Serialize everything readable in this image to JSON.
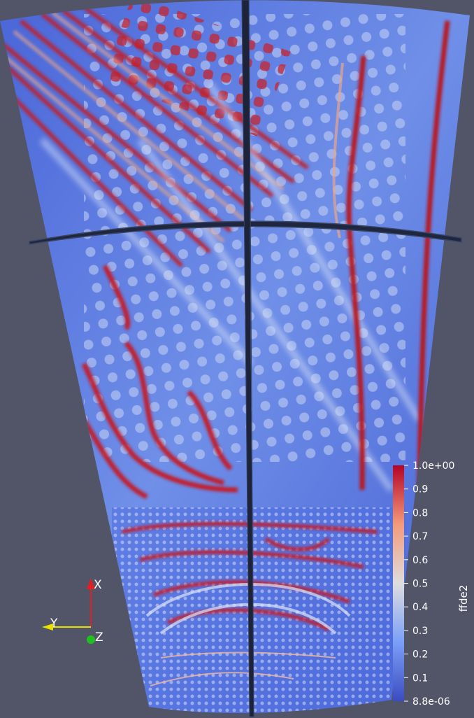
{
  "colormap": {
    "name": "Cool to Warm",
    "colors": {
      "low": "#3b4cc0",
      "mid": "#dddddd",
      "high": "#b40426"
    }
  },
  "background_color": "#525468",
  "scalar_bar": {
    "title": "ffde2",
    "range": [
      8.8e-06,
      1.0
    ],
    "tick_labels": [
      "1.0e+00",
      "0.9",
      "0.8",
      "0.7",
      "0.6",
      "0.5",
      "0.4",
      "0.3",
      "0.2",
      "0.1",
      "8.8e-06"
    ]
  },
  "orientation_axes": {
    "x_label": "X",
    "y_label": "Y",
    "z_label": "Z",
    "x_color": "#e02020",
    "y_color": "#e8e000",
    "z_color": "#20c020"
  }
}
